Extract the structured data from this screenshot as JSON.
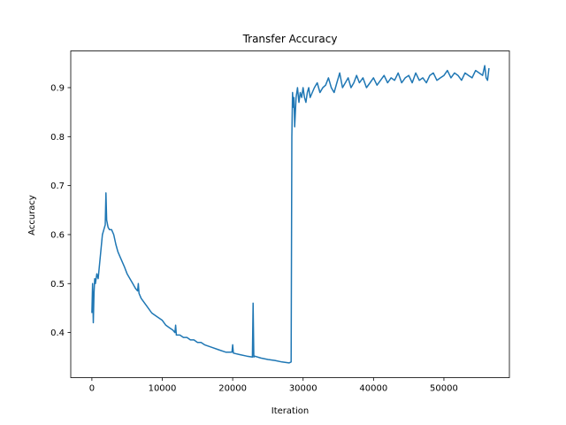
{
  "chart_data": {
    "type": "line",
    "title": "Transfer Accuracy",
    "xlabel": "Iteration",
    "ylabel": "Accuracy",
    "xlim": [
      -3000,
      59300
    ],
    "ylim": [
      0.308,
      0.975
    ],
    "xticks": [
      {
        "value": 0,
        "label": "0"
      },
      {
        "value": 10000,
        "label": "10000"
      },
      {
        "value": 20000,
        "label": "20000"
      },
      {
        "value": 30000,
        "label": "30000"
      },
      {
        "value": 40000,
        "label": "40000"
      },
      {
        "value": 50000,
        "label": "50000"
      }
    ],
    "yticks": [
      {
        "value": 0.4,
        "label": "0.4"
      },
      {
        "value": 0.5,
        "label": "0.5"
      },
      {
        "value": 0.6,
        "label": "0.6"
      },
      {
        "value": 0.7,
        "label": "0.7"
      },
      {
        "value": 0.8,
        "label": "0.8"
      },
      {
        "value": 0.9,
        "label": "0.9"
      }
    ],
    "grid": false,
    "legend": "none",
    "series": [
      {
        "color": "#1f77b4",
        "x": [
          0,
          100,
          200,
          300,
          400,
          500,
          700,
          900,
          1100,
          1300,
          1500,
          1700,
          1900,
          2000,
          2100,
          2300,
          2500,
          2800,
          3100,
          3400,
          3700,
          4000,
          4300,
          4600,
          5000,
          5400,
          5800,
          6200,
          6500,
          6600,
          6700,
          7000,
          7500,
          8000,
          8500,
          9000,
          9500,
          10000,
          10500,
          11000,
          11500,
          11800,
          11900,
          12000,
          12500,
          13000,
          13500,
          14000,
          14500,
          15000,
          15500,
          16000,
          17000,
          18000,
          19000,
          19900,
          20000,
          20100,
          21000,
          22000,
          22800,
          22900,
          23000,
          23100,
          24000,
          25000,
          26000,
          27000,
          28000,
          28300,
          28400,
          28500,
          28600,
          28700,
          28800,
          29000,
          29200,
          29400,
          29600,
          29800,
          30000,
          30200,
          30400,
          30600,
          30800,
          31000,
          31300,
          31600,
          32000,
          32400,
          32800,
          33200,
          33600,
          34000,
          34400,
          34800,
          35200,
          35600,
          36000,
          36400,
          36800,
          37200,
          37600,
          38000,
          38500,
          39000,
          39500,
          40000,
          40500,
          41000,
          41500,
          42000,
          42500,
          43000,
          43500,
          44000,
          44500,
          45000,
          45500,
          46000,
          46500,
          47000,
          47500,
          48000,
          48500,
          49000,
          49500,
          50000,
          50500,
          51000,
          51500,
          52000,
          52500,
          53000,
          53500,
          54000,
          54500,
          55000,
          55500,
          55800,
          56000,
          56200,
          56400
        ],
        "y": [
          0.44,
          0.5,
          0.42,
          0.48,
          0.51,
          0.5,
          0.52,
          0.51,
          0.54,
          0.57,
          0.6,
          0.61,
          0.62,
          0.685,
          0.63,
          0.615,
          0.61,
          0.61,
          0.6,
          0.58,
          0.565,
          0.555,
          0.545,
          0.535,
          0.52,
          0.51,
          0.5,
          0.49,
          0.485,
          0.5,
          0.48,
          0.47,
          0.46,
          0.45,
          0.44,
          0.435,
          0.43,
          0.425,
          0.415,
          0.41,
          0.405,
          0.4,
          0.415,
          0.395,
          0.395,
          0.39,
          0.39,
          0.385,
          0.385,
          0.38,
          0.38,
          0.375,
          0.37,
          0.365,
          0.36,
          0.36,
          0.375,
          0.358,
          0.355,
          0.352,
          0.35,
          0.46,
          0.35,
          0.352,
          0.348,
          0.345,
          0.343,
          0.34,
          0.338,
          0.34,
          0.8,
          0.89,
          0.86,
          0.88,
          0.82,
          0.88,
          0.9,
          0.87,
          0.89,
          0.88,
          0.9,
          0.88,
          0.87,
          0.89,
          0.9,
          0.88,
          0.89,
          0.9,
          0.91,
          0.89,
          0.9,
          0.905,
          0.92,
          0.9,
          0.89,
          0.91,
          0.93,
          0.9,
          0.91,
          0.92,
          0.9,
          0.91,
          0.925,
          0.91,
          0.92,
          0.9,
          0.91,
          0.92,
          0.905,
          0.915,
          0.925,
          0.91,
          0.92,
          0.915,
          0.93,
          0.91,
          0.92,
          0.925,
          0.91,
          0.93,
          0.915,
          0.92,
          0.91,
          0.925,
          0.93,
          0.915,
          0.92,
          0.925,
          0.935,
          0.92,
          0.93,
          0.925,
          0.915,
          0.93,
          0.925,
          0.92,
          0.935,
          0.93,
          0.925,
          0.945,
          0.92,
          0.915,
          0.94
        ]
      }
    ]
  }
}
